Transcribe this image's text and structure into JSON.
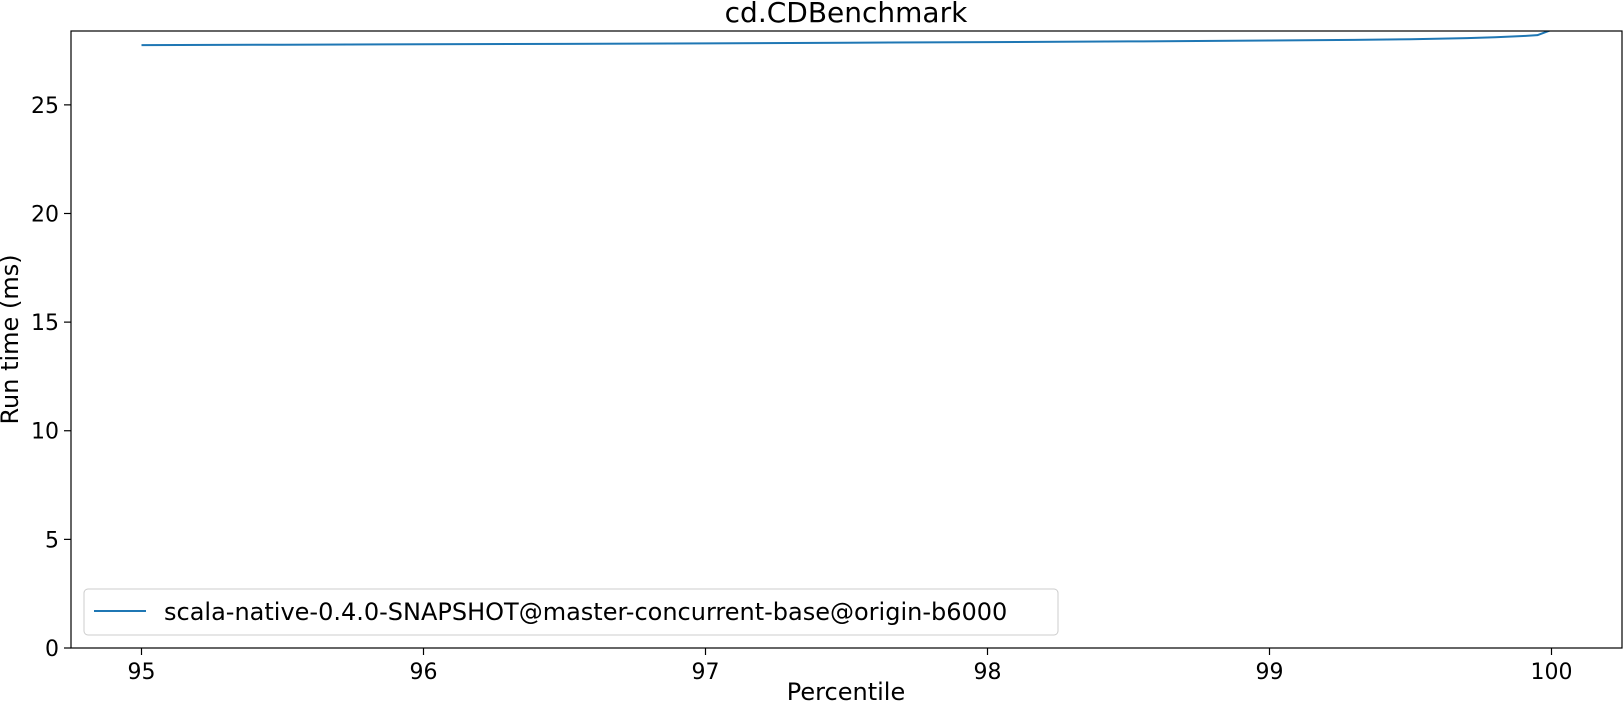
{
  "chart_data": {
    "type": "line",
    "title": "cd.CDBenchmark",
    "xlabel": "Percentile",
    "ylabel": "Run time (ms)",
    "xlim": [
      94.75,
      100.25
    ],
    "ylim": [
      0,
      28.4
    ],
    "xticks": [
      95,
      96,
      97,
      98,
      99,
      100
    ],
    "yticks": [
      0,
      5,
      10,
      15,
      20,
      25
    ],
    "grid": false,
    "legend_position": "lower-left",
    "series": [
      {
        "name": "scala-native-0.4.0-SNAPSHOT@master-concurrent-base@origin-b6000",
        "color": "#1f77b4",
        "x": [
          95.0,
          95.5,
          96.0,
          96.5,
          97.0,
          97.5,
          98.0,
          98.5,
          99.0,
          99.3,
          99.5,
          99.7,
          99.8,
          99.9,
          99.95,
          100.0
        ],
        "y": [
          27.75,
          27.77,
          27.79,
          27.81,
          27.83,
          27.86,
          27.89,
          27.92,
          27.96,
          27.99,
          28.02,
          28.07,
          28.11,
          28.17,
          28.21,
          28.45
        ]
      }
    ]
  }
}
